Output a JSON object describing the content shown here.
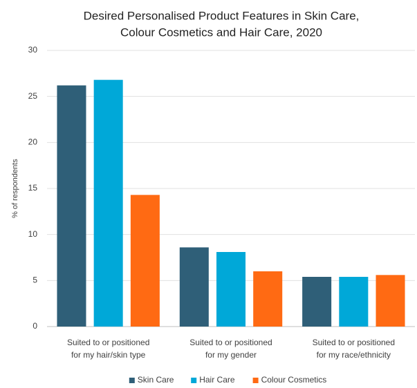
{
  "chart_data": {
    "type": "bar",
    "title": [
      "Desired Personalised Product Features in Skin Care,",
      "Colour Cosmetics and Hair Care, 2020"
    ],
    "y_label": "% of respondents",
    "categories": [
      [
        "Suited to or positioned",
        "for my hair/skin type"
      ],
      [
        "Suited to or positioned",
        "for my gender"
      ],
      [
        "Suited to or positioned",
        "for my race/ethnicity"
      ]
    ],
    "series": [
      {
        "name": "Skin Care",
        "color": "#2f5f78",
        "values": [
          26.2,
          8.6,
          5.4
        ]
      },
      {
        "name": "Hair Care",
        "color": "#00a8d8",
        "values": [
          26.8,
          8.1,
          5.4
        ]
      },
      {
        "name": "Colour Cosmetics",
        "color": "#ff6a13",
        "values": [
          14.3,
          6.0,
          5.6
        ]
      }
    ],
    "ylim": [
      0,
      30
    ],
    "yticks": [
      0,
      5,
      10,
      15,
      20,
      25,
      30
    ],
    "grid": true,
    "legend": "bottom"
  }
}
